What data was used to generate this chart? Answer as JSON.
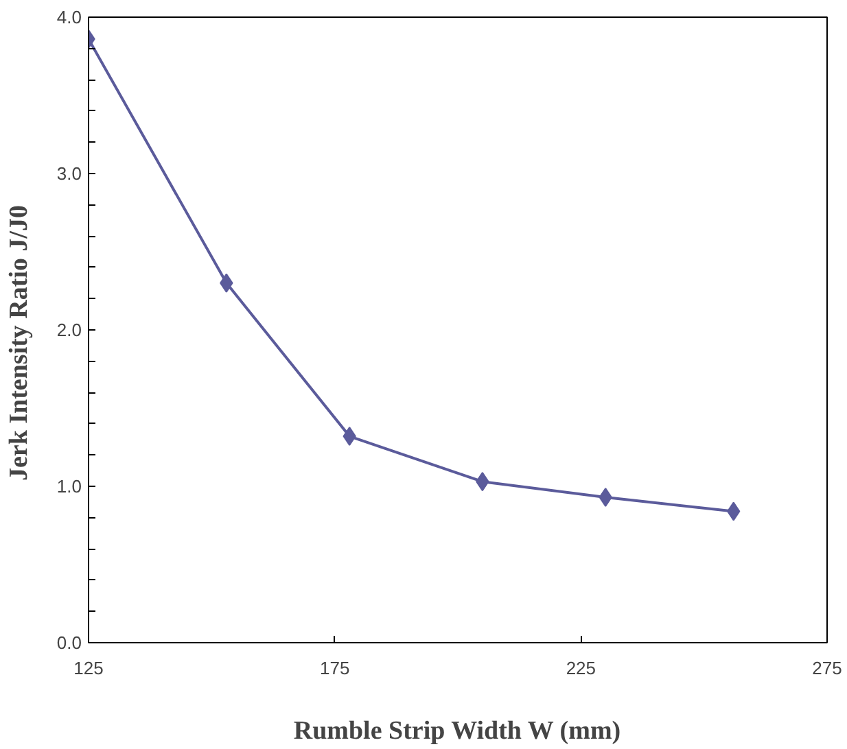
{
  "chart_data": {
    "type": "line",
    "xlabel": "Rumble Strip Width W (mm)",
    "ylabel": "Jerk  Intensity  Ratio   J/J0",
    "x": [
      125,
      153,
      178,
      205,
      230,
      256
    ],
    "series": [
      {
        "color": "#5b5b9b",
        "values": [
          3.86,
          2.3,
          1.32,
          1.03,
          0.93,
          0.84
        ]
      }
    ],
    "xlim": [
      125,
      275
    ],
    "xticks": [
      125,
      175,
      225,
      275
    ],
    "ylim": [
      0,
      4
    ],
    "yticks": [
      {
        "value": 0,
        "label": "0.0"
      },
      {
        "value": 0.2,
        "label": null
      },
      {
        "value": 0.4,
        "label": null
      },
      {
        "value": 0.6,
        "label": null
      },
      {
        "value": 0.8,
        "label": null
      },
      {
        "value": 1,
        "label": "1.0"
      },
      {
        "value": 1.2,
        "label": null
      },
      {
        "value": 1.4,
        "label": null
      },
      {
        "value": 1.6,
        "label": null
      },
      {
        "value": 1.8,
        "label": null
      },
      {
        "value": 2,
        "label": "2.0"
      },
      {
        "value": 2.2,
        "label": null
      },
      {
        "value": 2.4,
        "label": null
      },
      {
        "value": 2.6,
        "label": null
      },
      {
        "value": 2.8,
        "label": null
      },
      {
        "value": 3,
        "label": "3.0"
      },
      {
        "value": 3.2,
        "label": null
      },
      {
        "value": 3.4,
        "label": null
      },
      {
        "value": 3.6,
        "label": null
      },
      {
        "value": 3.8,
        "label": null
      },
      {
        "value": 4,
        "label": "4.0"
      }
    ],
    "grid": false,
    "marker": "diamond",
    "line_style": "solid"
  }
}
